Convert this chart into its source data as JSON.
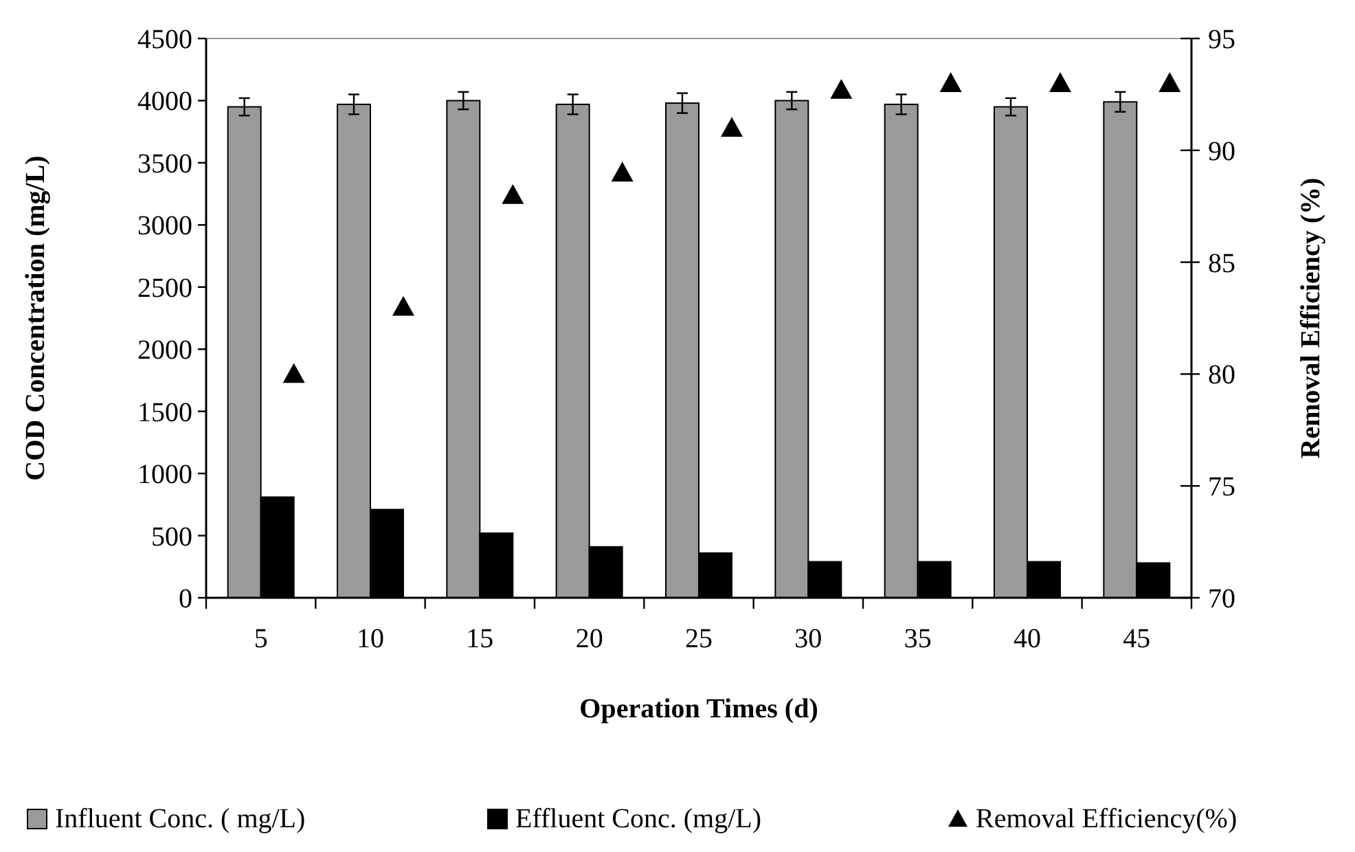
{
  "chart_data": {
    "type": "bar",
    "xlabel": "Operation Times (d)",
    "ylabel": "COD Concentration (mg/L)",
    "y2label": "Removal Efficiency (%)",
    "categories": [
      "5",
      "10",
      "15",
      "20",
      "25",
      "30",
      "35",
      "40",
      "45"
    ],
    "series": [
      {
        "name": "Influent Conc. ( mg/L)",
        "color": "#9a9a9a",
        "values": [
          3950,
          3970,
          4000,
          3970,
          3980,
          4000,
          3970,
          3950,
          3990
        ],
        "errors": [
          70,
          80,
          70,
          80,
          80,
          70,
          80,
          70,
          80
        ]
      },
      {
        "name": "Effluent Conc. (mg/L)",
        "color": "#000000",
        "values": [
          810,
          710,
          520,
          410,
          360,
          290,
          290,
          290,
          280
        ]
      },
      {
        "name": "Removal Efficiency(%)",
        "type": "scatter",
        "axis": "y2",
        "marker": "triangle",
        "color": "#000000",
        "values": [
          80,
          83,
          88,
          89,
          91,
          92.7,
          93,
          93,
          93
        ]
      }
    ],
    "ylim": [
      0,
      4500
    ],
    "yticks": [
      0,
      500,
      1000,
      1500,
      2000,
      2500,
      3000,
      3500,
      4000,
      4500
    ],
    "y2lim": [
      70,
      95
    ],
    "y2ticks": [
      70,
      75,
      80,
      85,
      90,
      95
    ],
    "grid": false,
    "legend": "bottom"
  }
}
